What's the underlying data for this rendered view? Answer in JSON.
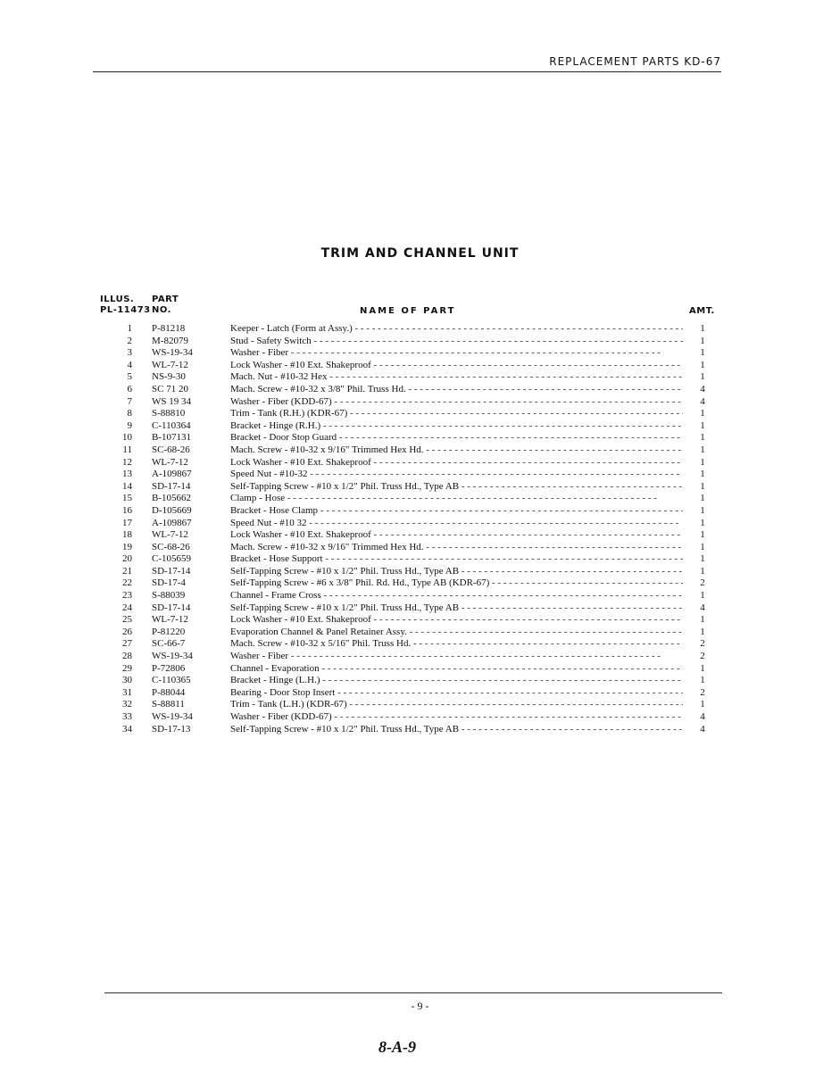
{
  "header": {
    "title": "REPLACEMENT PARTS KD-67"
  },
  "section_title": "TRIM AND CHANNEL UNIT",
  "columns": {
    "illus_line1": "ILLUS.",
    "illus_line2": "PL-11473",
    "part_line1": "PART",
    "part_line2": "NO.",
    "name": "NAME OF PART",
    "amt": "AMT."
  },
  "parts": [
    {
      "illus": "1",
      "part_no": "P-81218",
      "name": "Keeper - Latch (Form at Assy.)",
      "amt": "1"
    },
    {
      "illus": "2",
      "part_no": "M-82079",
      "name": "Stud - Safety Switch",
      "amt": "1"
    },
    {
      "illus": "3",
      "part_no": "WS-19-34",
      "name": "Washer - Fiber",
      "amt": "1"
    },
    {
      "illus": "4",
      "part_no": "WL-7-12",
      "name": "Lock Washer - #10 Ext. Shakeproof",
      "amt": "1"
    },
    {
      "illus": "5",
      "part_no": "NS-9-30",
      "name": "Mach. Nut - #10-32 Hex",
      "amt": "1"
    },
    {
      "illus": "6",
      "part_no": "SC 71 20",
      "name": "Mach. Screw - #10-32 x 3/8\" Phil. Truss Hd.",
      "amt": "4"
    },
    {
      "illus": "7",
      "part_no": "WS 19 34",
      "name": "Washer - Fiber (KDD-67)",
      "amt": "4"
    },
    {
      "illus": "8",
      "part_no": "S-88810",
      "name": "Trim - Tank (R.H.) (KDR-67)",
      "amt": "1"
    },
    {
      "illus": "9",
      "part_no": "C-110364",
      "name": "Bracket - Hinge (R.H.)",
      "amt": "1"
    },
    {
      "illus": "10",
      "part_no": "B-107131",
      "name": "Bracket - Door Stop Guard",
      "amt": "1"
    },
    {
      "illus": "11",
      "part_no": "SC-68-26",
      "name": "Mach. Screw - #10-32 x 9/16\" Trimmed Hex Hd.",
      "amt": "1"
    },
    {
      "illus": "12",
      "part_no": "WL-7-12",
      "name": "Lock Washer - #10 Ext. Shakeproof",
      "amt": "1"
    },
    {
      "illus": "13",
      "part_no": "A-109867",
      "name": "Speed Nut - #10-32",
      "amt": "1"
    },
    {
      "illus": "14",
      "part_no": "SD-17-14",
      "name": "Self-Tapping Screw - #10 x 1/2\" Phil. Truss Hd., Type AB",
      "amt": "1"
    },
    {
      "illus": "15",
      "part_no": "B-105662",
      "name": "Clamp - Hose",
      "amt": "1"
    },
    {
      "illus": "16",
      "part_no": "D-105669",
      "name": "Bracket - Hose Clamp",
      "amt": "1"
    },
    {
      "illus": "17",
      "part_no": "A-109867",
      "name": "Speed Nut - #10 32",
      "amt": "1"
    },
    {
      "illus": "18",
      "part_no": "WL-7-12",
      "name": "Lock Washer - #10 Ext. Shakeproof",
      "amt": "1"
    },
    {
      "illus": "19",
      "part_no": "SC-68-26",
      "name": "Mach. Screw - #10-32 x 9/16\" Trimmed Hex Hd.",
      "amt": "1"
    },
    {
      "illus": "20",
      "part_no": "C-105659",
      "name": "Bracket - Hose Support",
      "amt": "1"
    },
    {
      "illus": "21",
      "part_no": "SD-17-14",
      "name": "Self-Tapping Screw - #10 x 1/2\" Phil. Truss Hd., Type AB",
      "amt": "1"
    },
    {
      "illus": "22",
      "part_no": "SD-17-4",
      "name": "Self-Tapping Screw - #6 x 3/8\" Phil. Rd. Hd., Type AB (KDR-67)",
      "amt": "2"
    },
    {
      "illus": "23",
      "part_no": "S-88039",
      "name": "Channel - Frame Cross",
      "amt": "1"
    },
    {
      "illus": "24",
      "part_no": "SD-17-14",
      "name": "Self-Tapping Screw - #10 x 1/2\" Phil. Truss Hd., Type AB",
      "amt": "4"
    },
    {
      "illus": "25",
      "part_no": "WL-7-12",
      "name": "Lock Washer - #10 Ext. Shakeproof",
      "amt": "1"
    },
    {
      "illus": "26",
      "part_no": "P-81220",
      "name": "Evaporation Channel & Panel Retainer Assy.",
      "amt": "1"
    },
    {
      "illus": "27",
      "part_no": "SC-66-7",
      "name": "Mach. Screw - #10-32 x 5/16\" Phil. Truss Hd.",
      "amt": "2"
    },
    {
      "illus": "28",
      "part_no": "WS-19-34",
      "name": "Washer - Fiber",
      "amt": "2"
    },
    {
      "illus": "29",
      "part_no": "P-72806",
      "name": "Channel - Evaporation",
      "amt": "1"
    },
    {
      "illus": "30",
      "part_no": "C-110365",
      "name": "Bracket - Hinge (L.H.)",
      "amt": "1"
    },
    {
      "illus": "31",
      "part_no": "P-88044",
      "name": "Bearing - Door Stop Insert",
      "amt": "2"
    },
    {
      "illus": "32",
      "part_no": "S-88811",
      "name": "Trim - Tank (L.H.) (KDR-67)",
      "amt": "1"
    },
    {
      "illus": "33",
      "part_no": "WS-19-34",
      "name": "Washer - Fiber (KDD-67)",
      "amt": "4"
    },
    {
      "illus": "34",
      "part_no": "SD-17-13",
      "name": "Self-Tapping Screw - #10 x 1/2\" Phil. Truss Hd., Type AB",
      "amt": "4"
    }
  ],
  "footer": {
    "page_number": "- 9 -",
    "handwritten_mark": "8-A-9"
  }
}
